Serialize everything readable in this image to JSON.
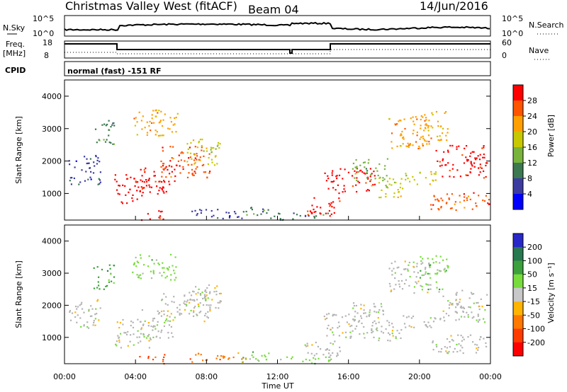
{
  "header": {
    "title": "Christmas Valley West (fitACF)",
    "beam": "Beam 04",
    "date": "14/Jun/2016"
  },
  "status": {
    "nsky_label": "N.Sky",
    "nsky_ticks": [
      "10^5",
      "10^0"
    ],
    "nsearch_label": "N.Search",
    "nsearch_ticks": [
      "10^5",
      "10^0"
    ],
    "freq_label": "Freq.",
    "freq_unit": "[MHz]",
    "freq_ticks": [
      "18",
      "8"
    ],
    "nave_label": "Nave",
    "nave_ticks": [
      "60",
      "0"
    ],
    "cpid_label": "CPID",
    "cpid_value": "normal (fast) -151 RF"
  },
  "chart_data": [
    {
      "type": "heatmap",
      "name": "power",
      "ylabel": "Slant Range [km]",
      "yticks": [
        "4000",
        "3000",
        "2000",
        "1000"
      ],
      "ylim": [
        180,
        4500
      ],
      "colorbar_label": "Power [dB]",
      "colorbar_ticks": [
        "28",
        "24",
        "20",
        "16",
        "12",
        "8",
        "4"
      ],
      "colorbar_colors": [
        "#ff0000",
        "#ff5500",
        "#ffa000",
        "#c8c800",
        "#78b43c",
        "#3c7850",
        "#3c3ca0",
        "#0000ff"
      ]
    },
    {
      "type": "heatmap",
      "name": "velocity",
      "ylabel": "Slant Range [km]",
      "yticks": [
        "4000",
        "3000",
        "2000",
        "1000"
      ],
      "ylim": [
        180,
        4500
      ],
      "colorbar_label": "Velocity [m s⁻¹]",
      "colorbar_ticks": [
        "200",
        "100",
        "50",
        "15",
        "-15",
        "-50",
        "-100",
        "-200"
      ],
      "colorbar_colors": [
        "#2828c8",
        "#287850",
        "#3ca03c",
        "#78dc3c",
        "#c8c8c8",
        "#ffb400",
        "#ff7800",
        "#ff3c00",
        "#ff0000"
      ]
    }
  ],
  "xaxis": {
    "label": "Time UT",
    "ticks": [
      "00:00",
      "04:00",
      "08:00",
      "12:00",
      "16:00",
      "20:00",
      "00:00"
    ]
  },
  "colors": {
    "ground_scatter": "#b4b4b4"
  }
}
